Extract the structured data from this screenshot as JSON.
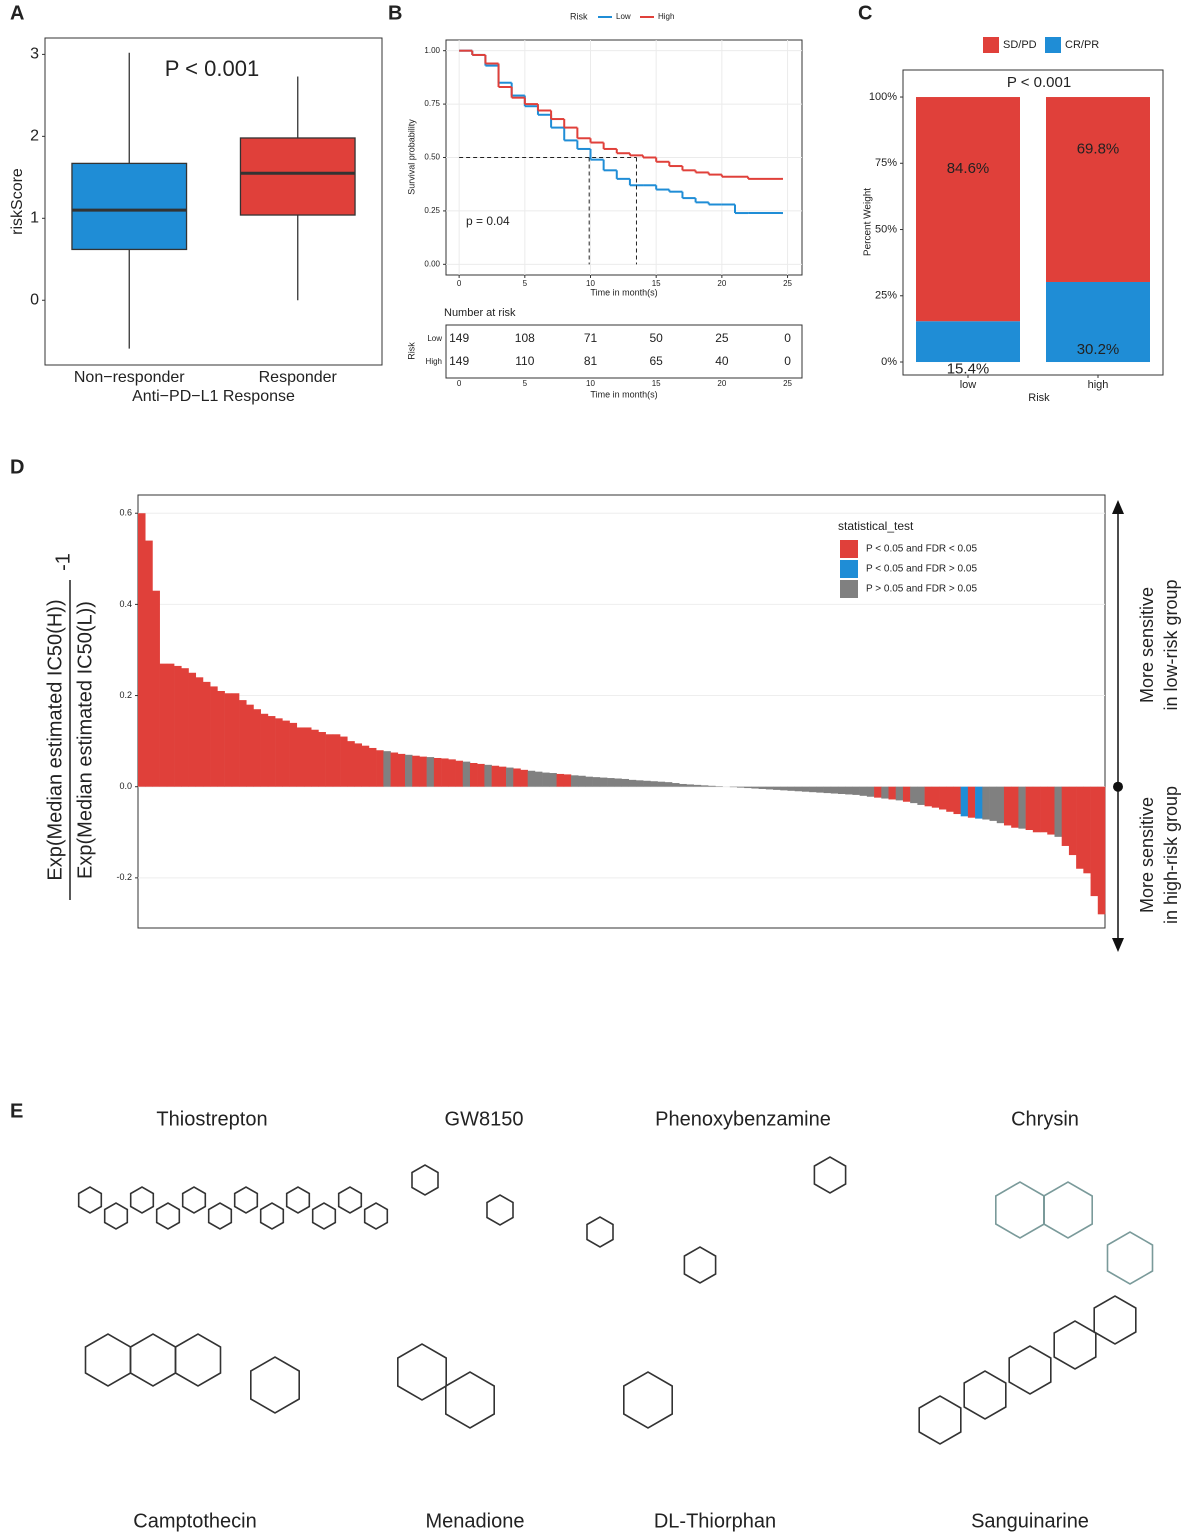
{
  "chart_data": [
    {
      "type": "box",
      "panel": "A",
      "annotation": "P < 0.001",
      "xlabel": "Anti−PD−L1 Response",
      "ylabel": "riskScore",
      "categories": [
        "Non−responder",
        "Responder"
      ],
      "colors": [
        "#1f8dd6",
        "#e0403a"
      ],
      "boxes": [
        {
          "low": -0.59,
          "q1": 0.62,
          "median": 1.1,
          "q3": 1.67,
          "high": 3.02
        },
        {
          "low": 0,
          "q1": 1.04,
          "median": 1.55,
          "q3": 1.98,
          "high": 2.73
        }
      ],
      "ylim": [
        -0.79,
        3.2
      ],
      "yticks": [
        0,
        1,
        2,
        3
      ]
    },
    {
      "type": "line",
      "panel": "B",
      "legend_title": "Risk",
      "xlabel": "Time in month(s)",
      "ylabel": "Survival probability",
      "annotation": "p = 0.04",
      "x": [
        0,
        1,
        2,
        3,
        4,
        5,
        6,
        7,
        8,
        9,
        10,
        11,
        12,
        13,
        14,
        15,
        16,
        17,
        18,
        19,
        20,
        21,
        22,
        24.5
      ],
      "series": [
        {
          "name": "Low",
          "color": "#1f8dd6",
          "median": 9.9,
          "values": [
            1.0,
            0.98,
            0.93,
            0.85,
            0.79,
            0.74,
            0.7,
            0.64,
            0.58,
            0.54,
            0.49,
            0.44,
            0.4,
            0.37,
            0.37,
            0.35,
            0.34,
            0.31,
            0.29,
            0.28,
            0.28,
            0.24,
            0.24,
            0.24
          ]
        },
        {
          "name": "High",
          "color": "#e0403a",
          "median": 13.5,
          "values": [
            1.0,
            0.98,
            0.94,
            0.83,
            0.78,
            0.75,
            0.72,
            0.68,
            0.64,
            0.59,
            0.57,
            0.54,
            0.52,
            0.51,
            0.5,
            0.48,
            0.46,
            0.44,
            0.43,
            0.42,
            0.41,
            0.41,
            0.4,
            0.4
          ]
        }
      ],
      "median_level": 0.5,
      "xlim": [
        -1.0,
        26.1
      ],
      "xticks": [
        0,
        5,
        10,
        15,
        20,
        25
      ],
      "ylim": [
        -0.05,
        1.05
      ],
      "yticks": [
        {
          "value": 0,
          "label": "0.00"
        },
        0.25,
        {
          "value": 0.5,
          "label": "0.50"
        },
        0.75,
        {
          "value": 1,
          "label": "1.00"
        }
      ],
      "grid": true,
      "risk_table": {
        "title": "Number at risk",
        "ylabel": "Risk",
        "xlabel": "Time in month(s)",
        "x": [
          0,
          5,
          10,
          15,
          20,
          25
        ],
        "rows": [
          {
            "name": "Low",
            "color": "#1f8dd6",
            "values": [
              149,
              108,
              71,
              50,
              25,
              0
            ]
          },
          {
            "name": "High",
            "color": "#e0403a",
            "values": [
              149,
              110,
              81,
              65,
              40,
              0
            ]
          }
        ]
      }
    },
    {
      "type": "bar",
      "stacked": true,
      "panel": "C",
      "annotation": "P < 0.001",
      "xlabel": "Risk",
      "ylabel": "Percent Weight",
      "categories": [
        "low",
        "high"
      ],
      "series": [
        {
          "name": "SD/PD",
          "color": "#e0403a",
          "values": [
            84.6,
            69.8
          ],
          "value_labels": [
            "84.6%",
            "69.8%"
          ]
        },
        {
          "name": "CR/PR",
          "color": "#1f8dd6",
          "values": [
            15.4,
            30.2
          ],
          "value_labels": [
            "15.4%",
            "30.2%"
          ]
        }
      ],
      "ylim": [
        -4.9,
        110.2
      ],
      "yticks": [
        {
          "value": 0,
          "label": "0%"
        },
        {
          "value": 25,
          "label": "25%"
        },
        {
          "value": 50,
          "label": "50%"
        },
        {
          "value": 75,
          "label": "75%"
        },
        {
          "value": 100,
          "label": "100%"
        }
      ]
    },
    {
      "type": "bar",
      "stacked": false,
      "panel": "D",
      "ylabel": {
        "numerator": "Exp(Median estimated IC50(H))",
        "denominator": "Exp(Median estimated IC50(L))",
        "suffix": "-1"
      },
      "legend_title": "statistical_test",
      "groups": [
        {
          "name": "P < 0.05 and FDR < 0.05",
          "color": "#e0403a"
        },
        {
          "name": "P < 0.05 and FDR > 0.05",
          "color": "#1f8dd6"
        },
        {
          "name": "P > 0.05 and FDR > 0.05",
          "color": "#808080"
        }
      ],
      "side_labels": [
        [
          "More sensitive",
          "in low-risk group"
        ],
        [
          "More sensitive",
          "in high-risk group"
        ]
      ],
      "values": [
        0.6,
        0.54,
        0.43,
        0.27,
        0.27,
        0.265,
        0.26,
        0.25,
        0.24,
        0.23,
        0.22,
        0.21,
        0.205,
        0.205,
        0.19,
        0.18,
        0.17,
        0.16,
        0.155,
        0.15,
        0.145,
        0.14,
        0.13,
        0.13,
        0.125,
        0.12,
        0.115,
        0.115,
        0.11,
        0.1,
        0.095,
        0.09,
        0.085,
        0.08,
        0.078,
        0.075,
        0.072,
        0.07,
        0.068,
        0.066,
        0.065,
        0.063,
        0.062,
        0.06,
        0.057,
        0.055,
        0.052,
        0.05,
        0.048,
        0.046,
        0.044,
        0.042,
        0.04,
        0.037,
        0.035,
        0.033,
        0.031,
        0.03,
        0.028,
        0.027,
        0.025,
        0.024,
        0.022,
        0.021,
        0.02,
        0.019,
        0.018,
        0.017,
        0.015,
        0.014,
        0.013,
        0.012,
        0.011,
        0.01,
        0.008,
        0.006,
        0.005,
        0.004,
        0.003,
        0.002,
        0.001,
        0,
        -0.001,
        -0.002,
        -0.003,
        -0.004,
        -0.005,
        -0.006,
        -0.007,
        -0.008,
        -0.009,
        -0.01,
        -0.011,
        -0.012,
        -0.013,
        -0.014,
        -0.015,
        -0.016,
        -0.017,
        -0.018,
        -0.02,
        -0.022,
        -0.024,
        -0.026,
        -0.028,
        -0.03,
        -0.033,
        -0.036,
        -0.04,
        -0.043,
        -0.046,
        -0.05,
        -0.055,
        -0.06,
        -0.065,
        -0.068,
        -0.07,
        -0.072,
        -0.075,
        -0.08,
        -0.085,
        -0.09,
        -0.092,
        -0.095,
        -0.1,
        -0.1,
        -0.105,
        -0.11,
        -0.13,
        -0.15,
        -0.18,
        -0.19,
        -0.24,
        -0.28
      ],
      "group": [
        0,
        0,
        0,
        0,
        0,
        0,
        0,
        0,
        0,
        0,
        0,
        0,
        0,
        0,
        0,
        0,
        0,
        0,
        0,
        0,
        0,
        0,
        0,
        0,
        0,
        0,
        0,
        0,
        0,
        0,
        0,
        0,
        0,
        0,
        2,
        0,
        0,
        2,
        0,
        0,
        2,
        0,
        0,
        0,
        0,
        2,
        0,
        0,
        2,
        0,
        0,
        2,
        0,
        0,
        2,
        2,
        2,
        2,
        0,
        0,
        2,
        2,
        2,
        2,
        2,
        2,
        2,
        2,
        2,
        2,
        2,
        2,
        2,
        2,
        2,
        2,
        2,
        2,
        2,
        2,
        2,
        2,
        2,
        2,
        2,
        2,
        2,
        2,
        2,
        2,
        2,
        2,
        2,
        2,
        2,
        2,
        2,
        2,
        2,
        2,
        2,
        2,
        0,
        2,
        0,
        2,
        0,
        2,
        2,
        0,
        0,
        0,
        0,
        0,
        1,
        0,
        1,
        2,
        2,
        2,
        0,
        0,
        2,
        0,
        0,
        0,
        0,
        2,
        0,
        0,
        0,
        0,
        0,
        0
      ],
      "ylim": [
        -0.31,
        0.64
      ],
      "yticks": [
        -0.2,
        {
          "value": 0,
          "label": "0.0"
        },
        0.2,
        0.4,
        0.6
      ],
      "grid": true
    }
  ],
  "structures": {
    "panel": "E",
    "top": [
      "Thiostrepton",
      "GW8150",
      "Phenoxybenzamine",
      "Chrysin"
    ],
    "bottom": [
      "Camptothecin",
      "Menadione",
      "DL-Thiorphan",
      "Sanguinarine"
    ]
  }
}
